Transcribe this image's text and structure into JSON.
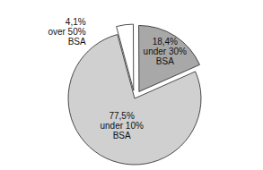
{
  "chart_data": {
    "type": "pie",
    "categories": [
      "over 50% BSA",
      "under 30% BSA",
      "under 10% BSA"
    ],
    "values": [
      4.1,
      18.4,
      77.5
    ],
    "value_labels": [
      "4,1%",
      "18,4%",
      "77,5%"
    ],
    "colors": [
      "#ffffff",
      "#a8a8a8",
      "#d0d0d0"
    ],
    "data_labels": true
  }
}
